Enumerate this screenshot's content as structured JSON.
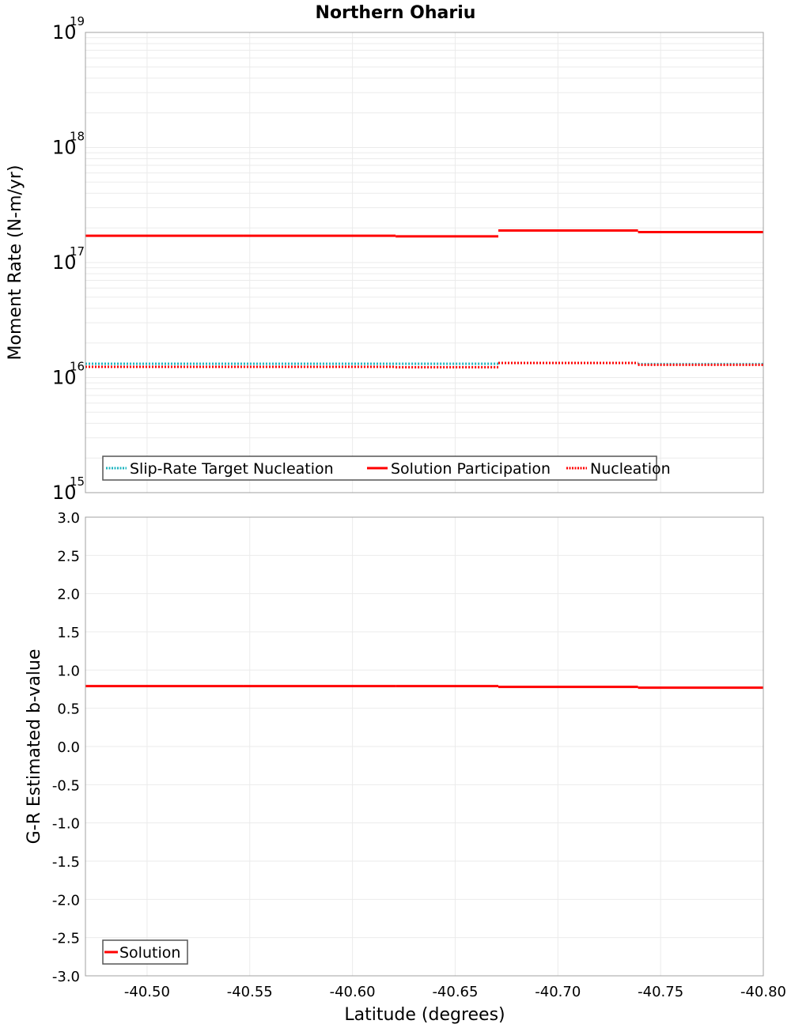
{
  "title": "Northern Ohariu",
  "colors": {
    "solution": "#ff0000",
    "target": "#1fb5c0",
    "nucleation": "#ff0000",
    "grid": "#ebebeb",
    "frame": "#a0a0a0"
  },
  "chart_data": [
    {
      "type": "line",
      "subtype": "step",
      "title": "Northern Ohariu",
      "xlabel": "",
      "ylabel": "Moment Rate (N-m/yr)",
      "yscale": "log",
      "ylim": [
        1000000000000000.0,
        1e+19
      ],
      "xlim": [
        -40.47,
        -40.8
      ],
      "ytick_labels": [
        {
          "base": "10",
          "exp": "15"
        },
        {
          "base": "10",
          "exp": "16"
        },
        {
          "base": "10",
          "exp": "17"
        },
        {
          "base": "10",
          "exp": "18"
        },
        {
          "base": "10",
          "exp": "19"
        }
      ],
      "grid": true,
      "legend_position": "lower-left",
      "legend": [
        "Slip-Rate Target Nucleation",
        "Solution Participation",
        "Nucleation"
      ],
      "segments_x": [
        [
          -40.47,
          -40.547
        ],
        [
          -40.547,
          -40.621
        ],
        [
          -40.621,
          -40.671
        ],
        [
          -40.671,
          -40.739
        ],
        [
          -40.739,
          -40.8
        ]
      ],
      "series": [
        {
          "name": "Slip-Rate Target Nucleation",
          "style": "dotted",
          "color": "#1fb5c0",
          "values": [
            1.32e+16,
            1.32e+16,
            1.32e+16,
            1.34e+16,
            1.31e+16
          ]
        },
        {
          "name": "Solution Participation",
          "style": "solid",
          "color": "#ff0000",
          "values": [
            1.71e+17,
            1.71e+17,
            1.69e+17,
            1.9e+17,
            1.84e+17
          ]
        },
        {
          "name": "Nucleation",
          "style": "dotted",
          "color": "#ff0000",
          "values": [
            1.24e+16,
            1.24e+16,
            1.23e+16,
            1.34e+16,
            1.29e+16
          ]
        }
      ]
    },
    {
      "type": "line",
      "subtype": "step",
      "title": "",
      "xlabel": "Latitude (degrees)",
      "ylabel": "G-R Estimated b-value",
      "ylim": [
        -3.0,
        3.0
      ],
      "xlim": [
        -40.47,
        -40.8
      ],
      "ytick_labels": [
        "3.0",
        "2.5",
        "2.0",
        "1.5",
        "1.0",
        "0.5",
        "0.0",
        "-0.5",
        "-1.0",
        "-1.5",
        "-2.0",
        "-2.5",
        "-3.0"
      ],
      "xtick_labels": [
        "-40.50",
        "-40.55",
        "-40.60",
        "-40.65",
        "-40.70",
        "-40.75",
        "-40.80"
      ],
      "grid": true,
      "legend_position": "lower-left",
      "legend": [
        "Solution"
      ],
      "segments_x": [
        [
          -40.47,
          -40.547
        ],
        [
          -40.547,
          -40.621
        ],
        [
          -40.621,
          -40.671
        ],
        [
          -40.671,
          -40.739
        ],
        [
          -40.739,
          -40.8
        ]
      ],
      "series": [
        {
          "name": "Solution",
          "style": "solid",
          "color": "#ff0000",
          "values": [
            0.79,
            0.79,
            0.79,
            0.78,
            0.77
          ]
        }
      ]
    }
  ]
}
